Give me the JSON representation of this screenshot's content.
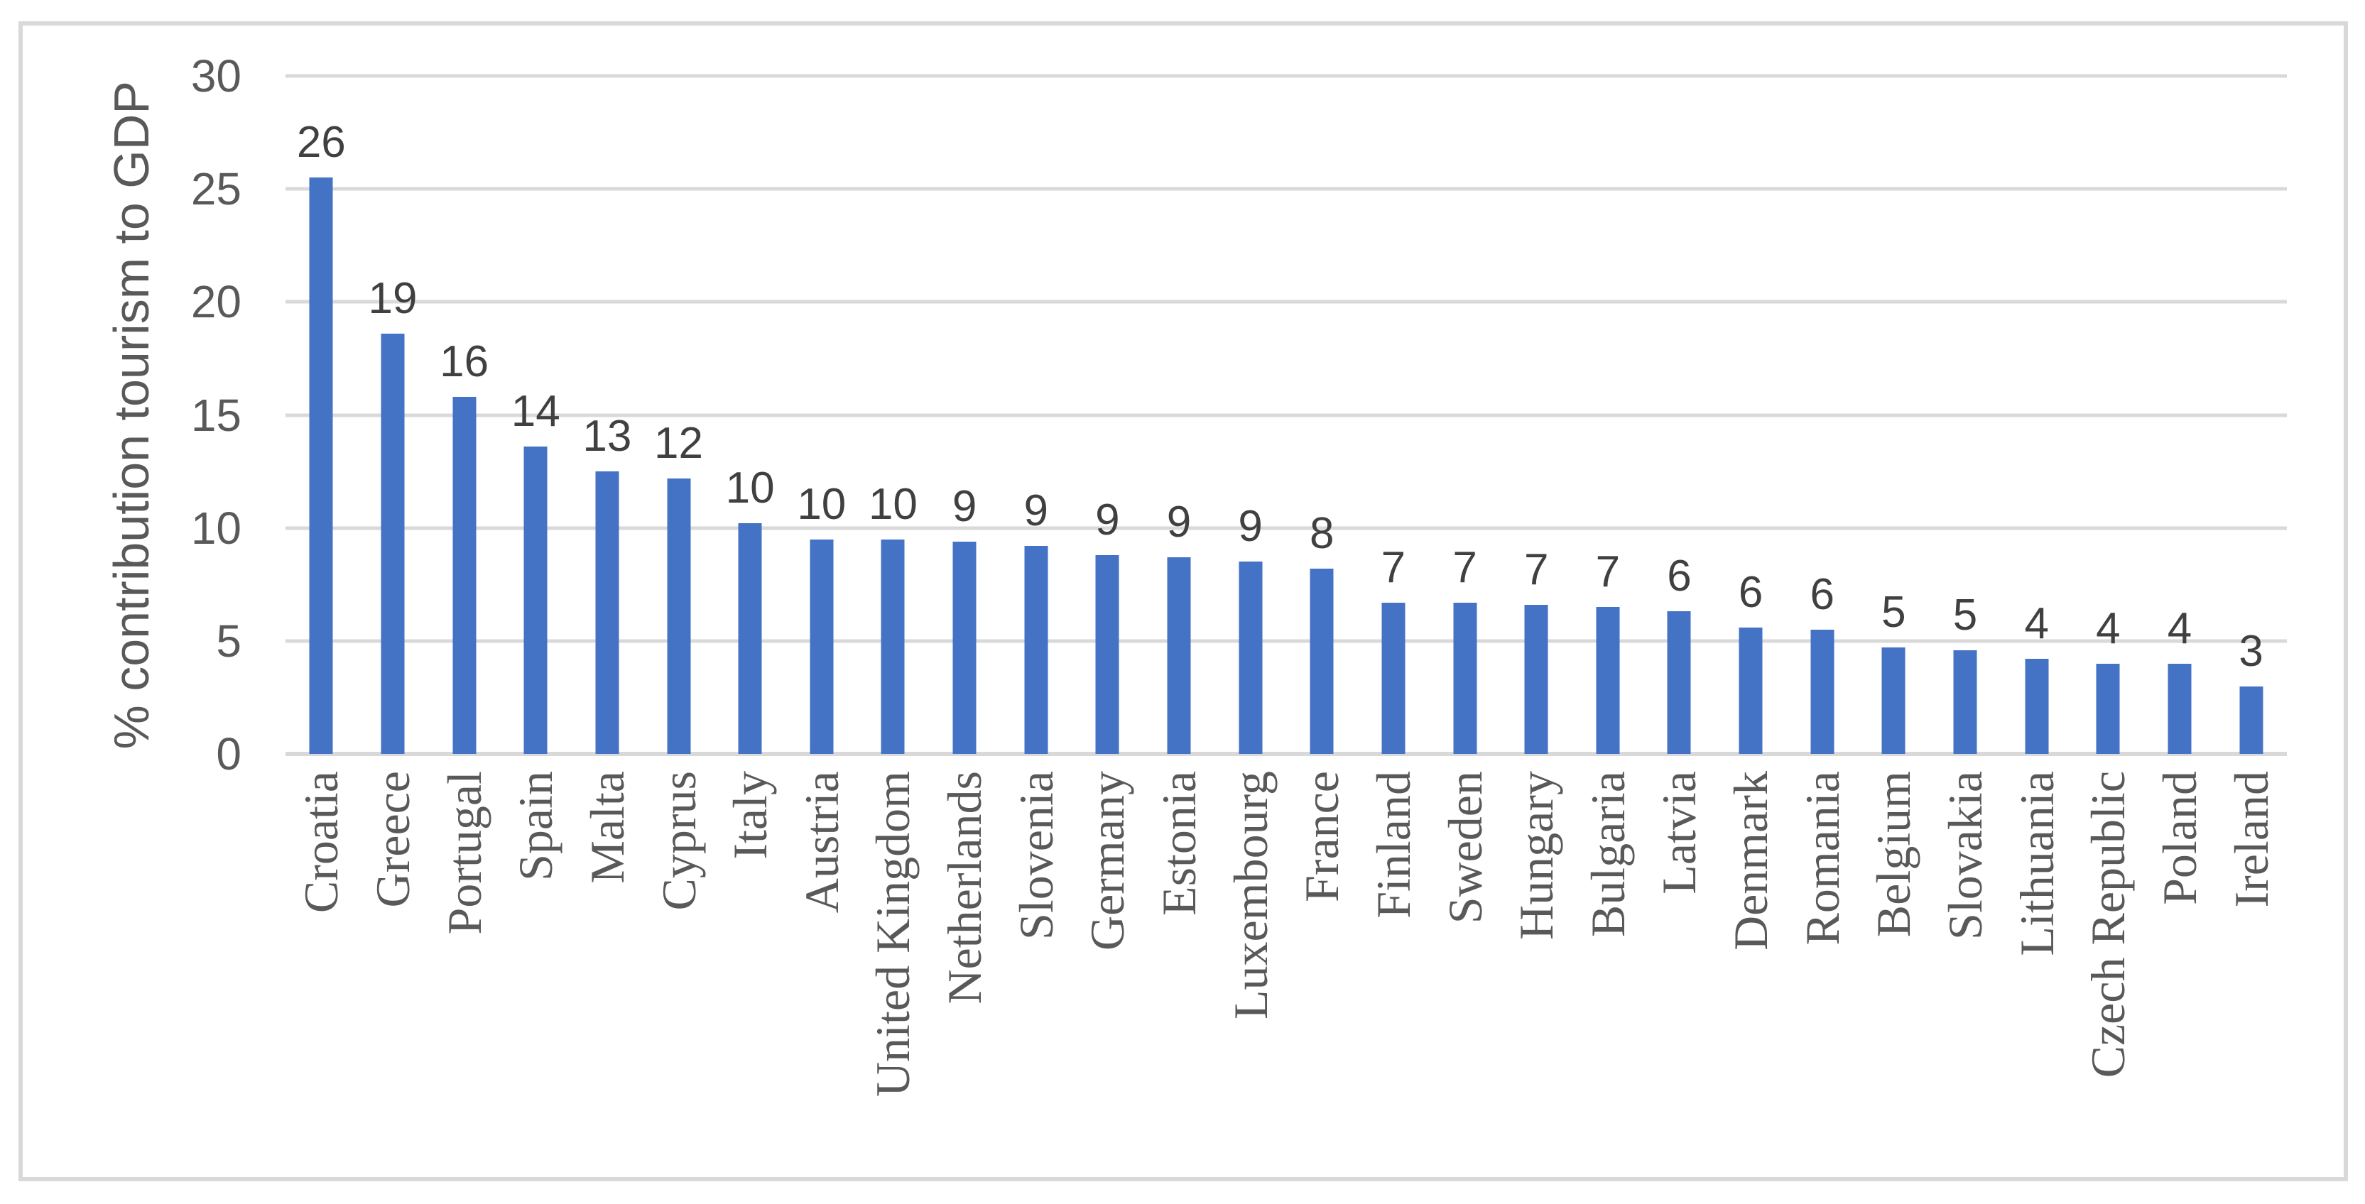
{
  "chart_data": {
    "type": "bar",
    "title": "",
    "xlabel": "",
    "ylabel": "% contribution tourism to GDP",
    "ylim": [
      0,
      30
    ],
    "yticks": [
      0,
      5,
      10,
      15,
      20,
      25,
      30
    ],
    "grid": "horizontal",
    "legend": "none",
    "categories": [
      "Croatia",
      "Greece",
      "Portugal",
      "Spain",
      "Malta",
      "Cyprus",
      "Italy",
      "Austria",
      "United Kingdom",
      "Netherlands",
      "Slovenia",
      "Germany",
      "Estonia",
      "Luxembourg",
      "France",
      "Finland",
      "Sweden",
      "Hungary",
      "Bulgaria",
      "Latvia",
      "Denmark",
      "Romania",
      "Belgium",
      "Slovakia",
      "Lithuania",
      "Czech Republic",
      "Poland",
      "Ireland"
    ],
    "values": [
      25.5,
      18.6,
      15.8,
      13.6,
      12.5,
      12.2,
      10.2,
      9.5,
      9.5,
      9.4,
      9.2,
      8.8,
      8.7,
      8.5,
      8.2,
      6.7,
      6.7,
      6.6,
      6.5,
      6.3,
      5.6,
      5.5,
      4.7,
      4.6,
      4.2,
      4.0,
      4.0,
      3.0
    ],
    "data_labels": [
      "26",
      "19",
      "16",
      "14",
      "13",
      "12",
      "10",
      "10",
      "10",
      "9",
      "9",
      "9",
      "9",
      "9",
      "8",
      "7",
      "7",
      "7",
      "7",
      "6",
      "6",
      "6",
      "5",
      "5",
      "4",
      "4",
      "4",
      "3"
    ]
  },
  "colors": {
    "bar": "#4472C4",
    "gridline": "#D9D9D9",
    "chart_border": "#D9D9D9",
    "tick_text": "#595959",
    "data_label_text": "#404040",
    "category_text": "#595959",
    "axis_title_text": "#595959"
  }
}
